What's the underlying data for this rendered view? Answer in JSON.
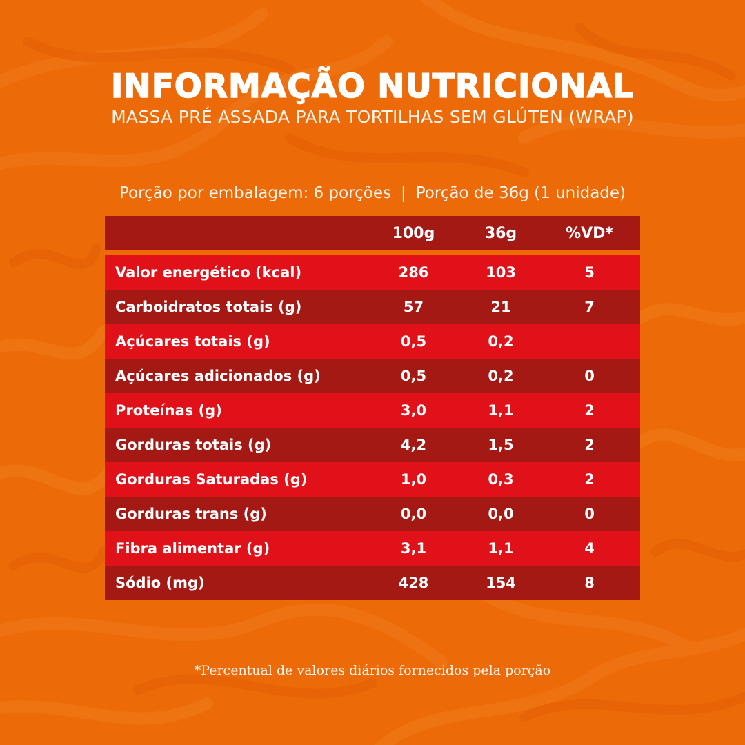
{
  "title": "INFORMAÇÃO NUTRICIONAL",
  "subtitle": "MASSA PRÉ ASSADA PARA TORTILHAS SEM GLÚTEN (WRAP)",
  "serving": {
    "per_package": "Porção por embalagem: 6 porções",
    "separator": "|",
    "portion": "Porção de 36g (1 unidade)"
  },
  "table": {
    "headers": [
      "",
      "100g",
      "36g",
      "%VD*"
    ],
    "rows": [
      {
        "name": "Valor energético (kcal)",
        "per100": "286",
        "per36": "103",
        "vd": "5"
      },
      {
        "name": "Carboidratos totais (g)",
        "per100": "57",
        "per36": "21",
        "vd": "7"
      },
      {
        "name": "Açúcares totais (g)",
        "per100": "0,5",
        "per36": "0,2",
        "vd": ""
      },
      {
        "name": "Açúcares adicionados (g)",
        "per100": "0,5",
        "per36": "0,2",
        "vd": "0"
      },
      {
        "name": "Proteínas (g)",
        "per100": "3,0",
        "per36": "1,1",
        "vd": "2"
      },
      {
        "name": "Gorduras totais (g)",
        "per100": "4,2",
        "per36": "1,5",
        "vd": "2"
      },
      {
        "name": "Gorduras Saturadas (g)",
        "per100": "1,0",
        "per36": "0,3",
        "vd": "2"
      },
      {
        "name": "Gorduras trans (g)",
        "per100": "0,0",
        "per36": "0,0",
        "vd": "0"
      },
      {
        "name": "Fibra alimentar (g)",
        "per100": "3,1",
        "per36": "1,1",
        "vd": "4"
      },
      {
        "name": "Sódio (mg)",
        "per100": "428",
        "per36": "154",
        "vd": "8"
      }
    ]
  },
  "footnote": "*Percentual de valores diários fornecidos pela porção",
  "colors": {
    "background": "#ec6a08",
    "header_row": "#a51915",
    "row_bright": "#e1111a",
    "row_dark": "#a51915",
    "text": "#ffffff"
  }
}
